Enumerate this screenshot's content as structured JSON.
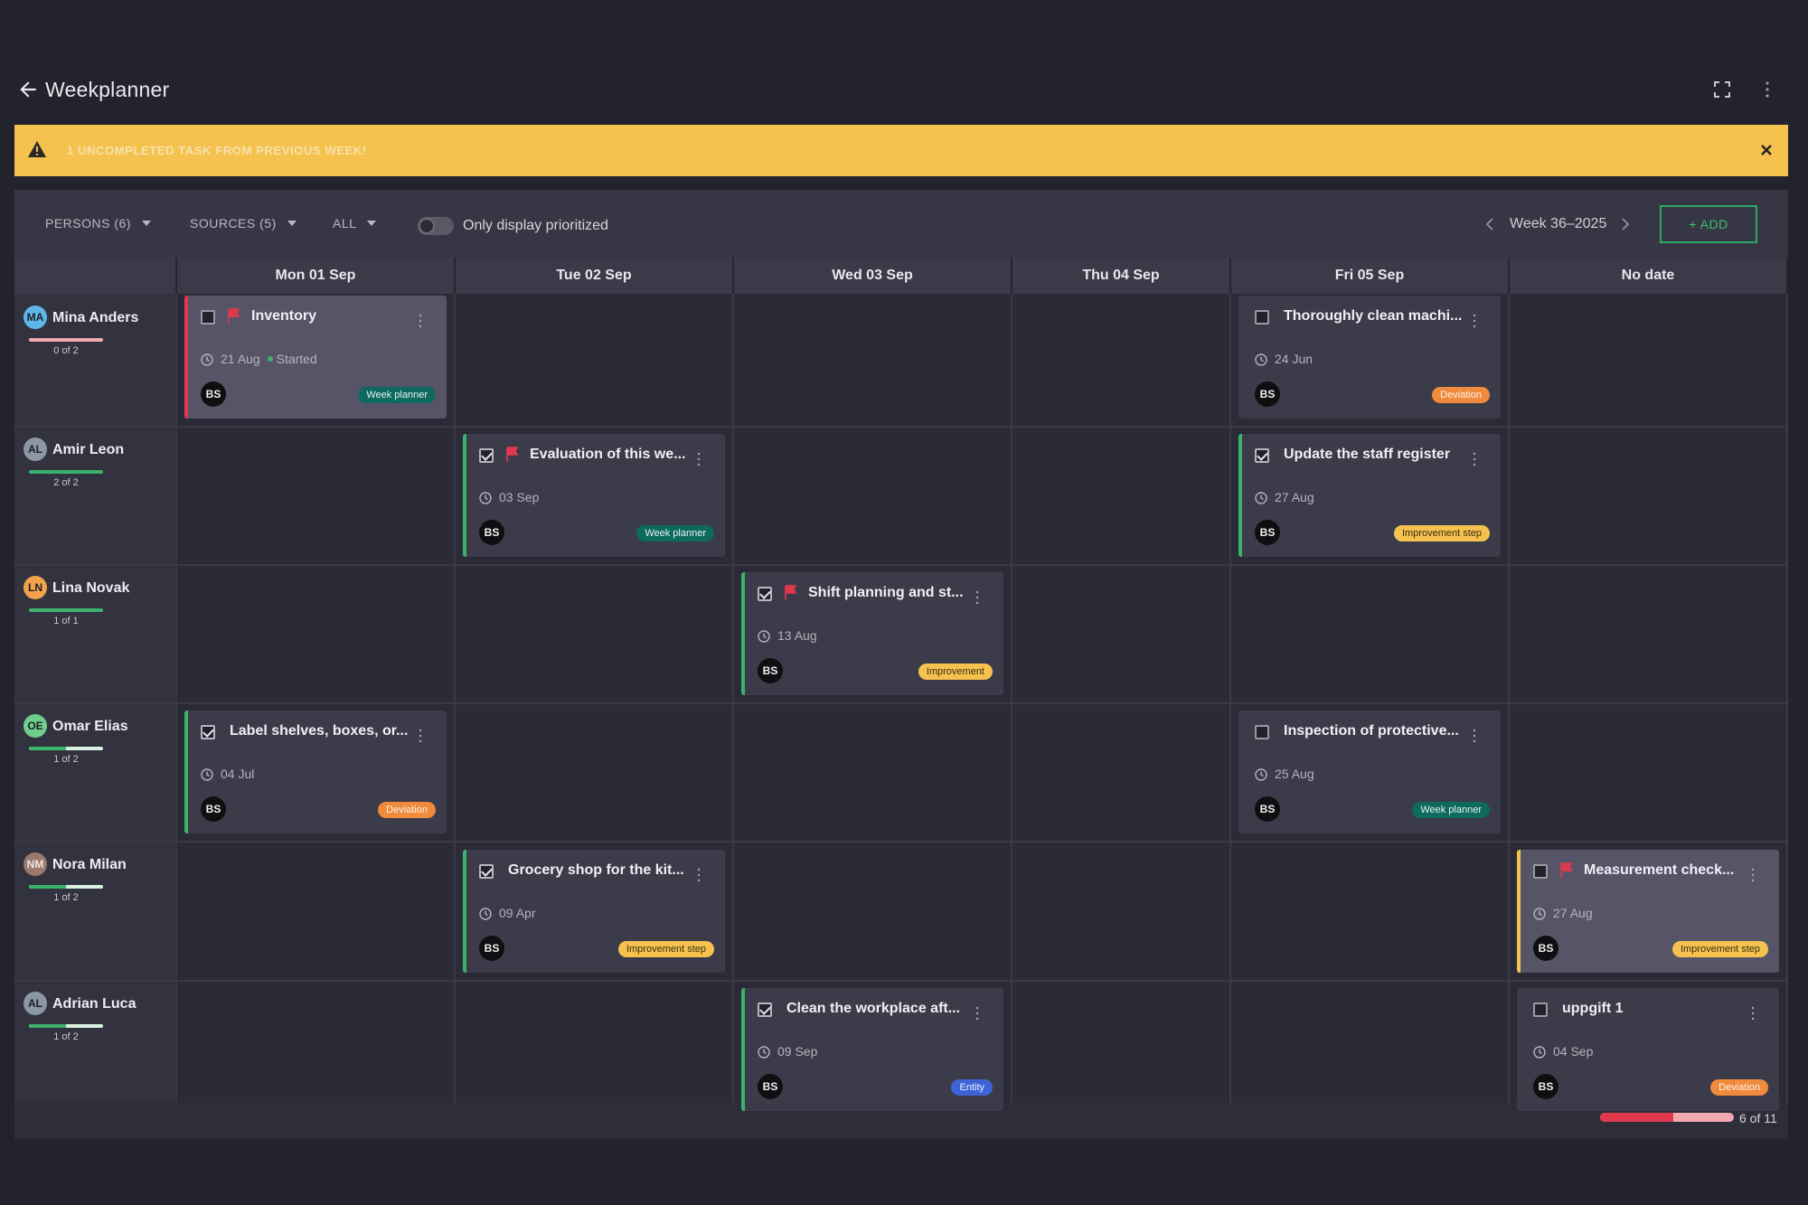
{
  "app": {
    "title": "Weekplanner"
  },
  "banner": {
    "text": "1 UNCOMPLETED TASK FROM PREVIOUS WEEK!"
  },
  "toolbar": {
    "persons_filter": "PERSONS (6)",
    "sources_filter": "SOURCES (5)",
    "all_filter": "ALL",
    "toggle_label": "Only display prioritized",
    "toggle_on": false,
    "week_label": "Week 36–2025",
    "add_label": "+ ADD"
  },
  "columns": [
    "Mon 01 Sep",
    "Tue 02 Sep",
    "Wed 03 Sep",
    "Thu 04 Sep",
    "Fri 05 Sep",
    "No date"
  ],
  "persons": [
    {
      "initials": "MA",
      "name": "Mina Anders",
      "count": "0 of 2",
      "progress": 0,
      "avatar_color": "#5fb6e8"
    },
    {
      "initials": "AL",
      "name": "Amir Leon",
      "count": "2 of 2",
      "progress": 1,
      "avatar_color": "#8b97a3"
    },
    {
      "initials": "LN",
      "name": "Lina Novak",
      "count": "1 of 1",
      "progress": 1,
      "avatar_color": "#f2a24a"
    },
    {
      "initials": "OE",
      "name": "Omar Elias",
      "count": "1 of 2",
      "progress": 0.5,
      "avatar_color": "#6fcf8e"
    },
    {
      "initials": "NM",
      "name": "Nora Milan",
      "count": "1 of 2",
      "progress": 0.5,
      "avatar_color": "#9a7a6f"
    },
    {
      "initials": "AL",
      "name": "Adrian Luca",
      "count": "1 of 2",
      "progress": 0.5,
      "avatar_color": "#8b97a3"
    }
  ],
  "cards": [
    {
      "title": "Inventory",
      "date": "21 Aug",
      "status": "Started",
      "assignee": "BS",
      "tag": "Week planner",
      "checked": false,
      "flag": true
    },
    {
      "title": "Thoroughly clean machi...",
      "date": "24 Jun",
      "assignee": "BS",
      "tag": "Deviation",
      "checked": false,
      "flag": false
    },
    {
      "title": "Evaluation of this we...",
      "date": "03 Sep",
      "assignee": "BS",
      "tag": "Week planner",
      "checked": true,
      "flag": true
    },
    {
      "title": "Update the staff register",
      "date": "27 Aug",
      "assignee": "BS",
      "tag": "Improvement step",
      "checked": true,
      "flag": false
    },
    {
      "title": "Shift planning and st...",
      "date": "13 Aug",
      "assignee": "BS",
      "tag": "Improvement",
      "checked": true,
      "flag": true
    },
    {
      "title": "Label shelves, boxes, or...",
      "date": "04 Jul",
      "assignee": "BS",
      "tag": "Deviation",
      "checked": true,
      "flag": false
    },
    {
      "title": "Inspection of protective...",
      "date": "25 Aug",
      "assignee": "BS",
      "tag": "Week planner",
      "checked": false,
      "flag": false
    },
    {
      "title": "Grocery shop for the kit...",
      "date": "09 Apr",
      "assignee": "BS",
      "tag": "Improvement step",
      "checked": true,
      "flag": false
    },
    {
      "title": "Measurement check...",
      "date": "27 Aug",
      "assignee": "BS",
      "tag": "Improvement step",
      "checked": false,
      "flag": true
    },
    {
      "title": "Clean the workplace aft...",
      "date": "09 Sep",
      "assignee": "BS",
      "tag": "Entity",
      "checked": true,
      "flag": false
    },
    {
      "title": "uppgift 1",
      "date": "04 Sep",
      "assignee": "BS",
      "tag": "Deviation",
      "checked": false,
      "flag": false
    }
  ],
  "footer": {
    "progress": 0.55,
    "count": "6 of 11"
  },
  "colors": {
    "accent_green": "#3bb36a",
    "banner": "#f5c24f",
    "priority_red": "#e0394e"
  }
}
